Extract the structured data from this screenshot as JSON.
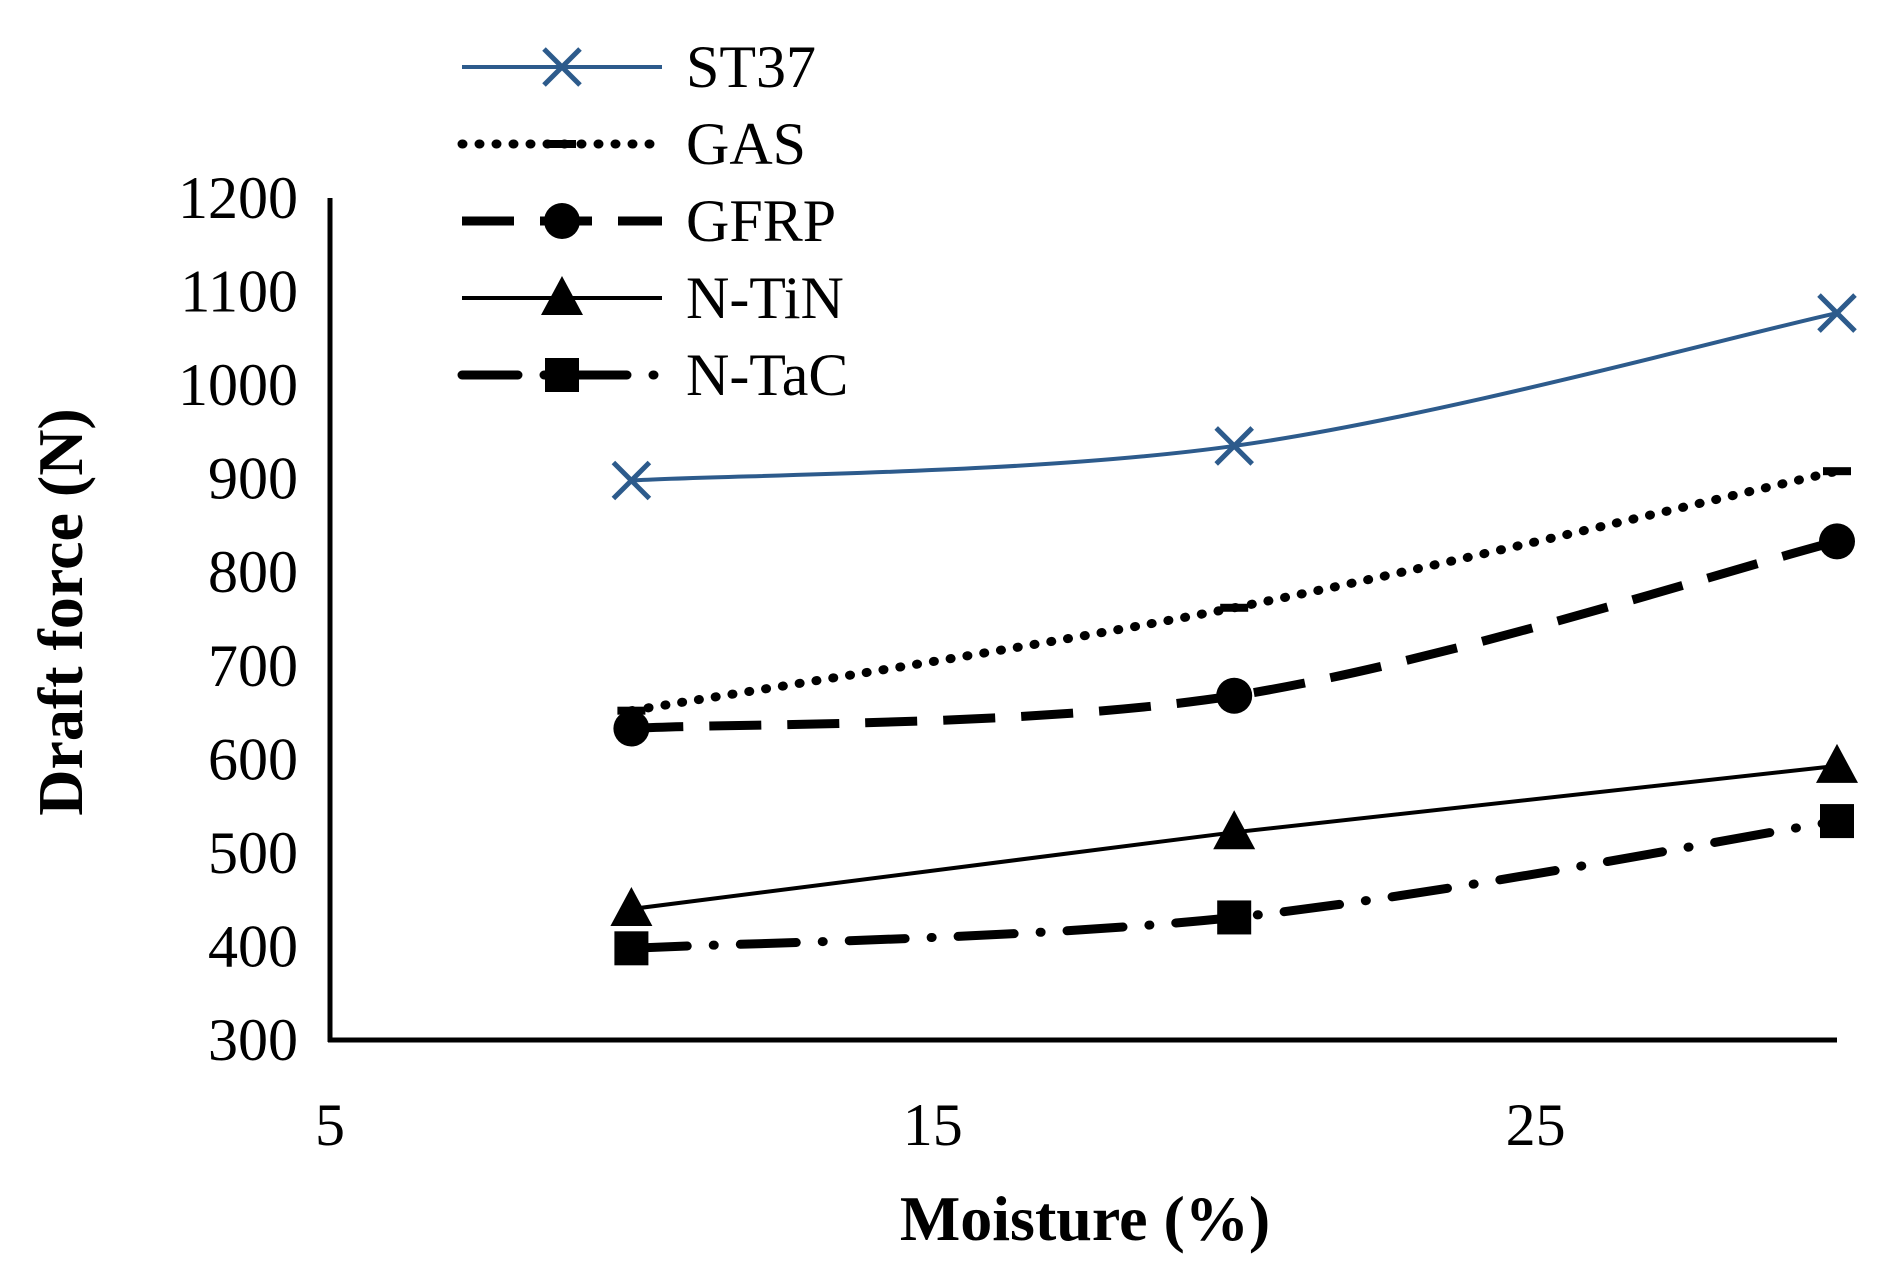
{
  "chart_data": {
    "type": "line",
    "title": "",
    "xlabel": "Moisture (%)",
    "ylabel": "Draft force (N)",
    "xlim": [
      5,
      30
    ],
    "ylim": [
      300,
      1200
    ],
    "x_ticks": [
      "5",
      "15",
      "25"
    ],
    "x_tick_values": [
      5,
      15,
      25
    ],
    "y_ticks": [
      "300",
      "400",
      "500",
      "600",
      "700",
      "800",
      "900",
      "1000",
      "1100",
      "1200"
    ],
    "y_tick_values": [
      300,
      400,
      500,
      600,
      700,
      800,
      900,
      1000,
      1100,
      1200
    ],
    "grid": false,
    "legend_position": "top-left",
    "x": [
      10,
      20,
      30
    ],
    "series": [
      {
        "name": "ST37",
        "values": [
          898,
          935,
          1077
        ],
        "color": "#2d5b8c",
        "marker": "x",
        "dash": "solid",
        "smooth": true
      },
      {
        "name": "GAS",
        "values": [
          652,
          762,
          908
        ],
        "color": "#000000",
        "marker": "dash",
        "dash": "dotted",
        "smooth": true
      },
      {
        "name": "GFRP",
        "values": [
          633,
          668,
          833
        ],
        "color": "#000000",
        "marker": "circle",
        "dash": "dashed",
        "smooth": true
      },
      {
        "name": "N-TiN",
        "values": [
          440,
          522,
          593
        ],
        "color": "#000000",
        "marker": "triangle",
        "dash": "solid",
        "smooth": false
      },
      {
        "name": "N-TaC",
        "values": [
          398,
          431,
          534
        ],
        "color": "#000000",
        "marker": "square",
        "dash": "dashdot",
        "smooth": true
      }
    ]
  }
}
